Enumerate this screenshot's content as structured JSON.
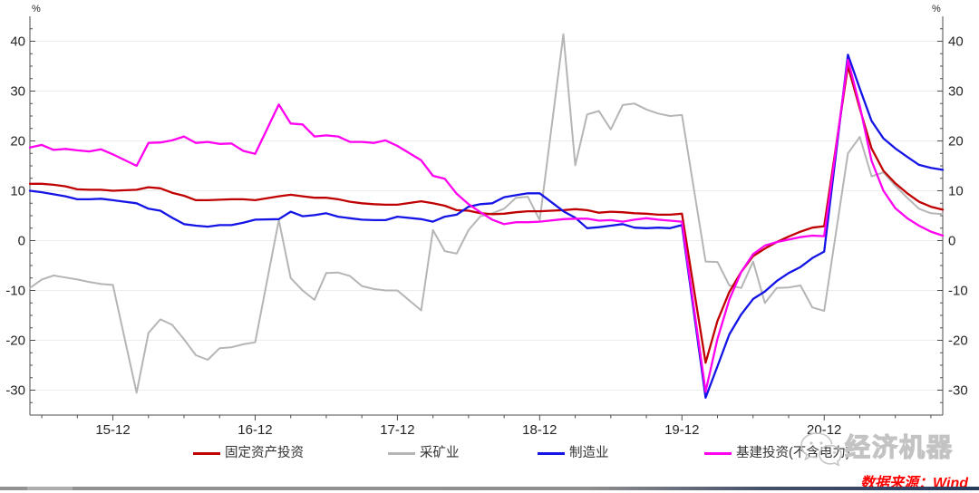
{
  "chart_data": {
    "type": "line",
    "title": "",
    "y_unit": "%",
    "ylim": [
      -35,
      45
    ],
    "y_major_ticks": [
      -30,
      -20,
      -10,
      0,
      10,
      20,
      30,
      40
    ],
    "y_minor_step": 2.5,
    "grid": true,
    "legend_position": "bottom",
    "x": [
      "2015-05",
      "2015-06",
      "2015-07",
      "2015-08",
      "2015-09",
      "2015-10",
      "2015-11",
      "2015-12",
      "2016-01",
      "2016-02",
      "2016-03",
      "2016-04",
      "2016-05",
      "2016-06",
      "2016-07",
      "2016-08",
      "2016-09",
      "2016-10",
      "2016-11",
      "2016-12",
      "2017-01",
      "2017-02",
      "2017-03",
      "2017-04",
      "2017-05",
      "2017-06",
      "2017-07",
      "2017-08",
      "2017-09",
      "2017-10",
      "2017-11",
      "2017-12",
      "2018-01",
      "2018-02",
      "2018-03",
      "2018-04",
      "2018-05",
      "2018-06",
      "2018-07",
      "2018-08",
      "2018-09",
      "2018-10",
      "2018-11",
      "2018-12",
      "2019-01",
      "2019-02",
      "2019-03",
      "2019-04",
      "2019-05",
      "2019-06",
      "2019-07",
      "2019-08",
      "2019-09",
      "2019-10",
      "2019-11",
      "2019-12",
      "2020-01",
      "2020-02",
      "2020-03",
      "2020-04",
      "2020-05",
      "2020-06",
      "2020-07",
      "2020-08",
      "2020-09",
      "2020-10",
      "2020-11",
      "2020-12",
      "2021-01",
      "2021-02",
      "2021-03",
      "2021-04",
      "2021-05",
      "2021-06",
      "2021-07",
      "2021-08",
      "2021-09",
      "2021-10"
    ],
    "x_major_tick_labels": [
      "15-12",
      "16-12",
      "17-12",
      "18-12",
      "19-12",
      "20-12"
    ],
    "x_major_tick_indices": [
      7,
      19,
      31,
      43,
      55,
      67
    ],
    "x_minor_every_months": 3,
    "series": [
      {
        "key": "mining",
        "name": "采矿业",
        "color": "#b5b5b5",
        "width": 2,
        "values": [
          -9.5,
          -7.8,
          -7.0,
          -7.4,
          -7.8,
          -8.3,
          -8.7,
          -8.9,
          null,
          -30.5,
          -18.5,
          -15.8,
          -16.9,
          -19.8,
          -23.0,
          -23.9,
          -21.6,
          -21.4,
          -20.8,
          -20.4,
          null,
          4.1,
          -7.5,
          -10.0,
          -11.9,
          -6.5,
          -6.4,
          -7.1,
          -9.1,
          -9.7,
          -10.0,
          -10.0,
          null,
          -14.0,
          2.1,
          -2.1,
          -2.6,
          2.1,
          4.9,
          5.5,
          6.4,
          8.6,
          8.8,
          4.1,
          null,
          41.4,
          15.1,
          25.3,
          26.0,
          22.3,
          27.2,
          27.5,
          26.3,
          25.5,
          25.0,
          25.2,
          null,
          -4.2,
          -4.3,
          -9.0,
          -9.5,
          -4.2,
          -12.5,
          -9.5,
          -9.4,
          -9.0,
          -13.4,
          -14.1,
          null,
          17.5,
          20.8,
          12.9,
          13.7,
          11.0,
          8.6,
          6.4,
          5.5,
          5.3
        ]
      },
      {
        "key": "fai",
        "name": "固定资产投资",
        "color": "#c00000",
        "width": 2.3,
        "values": [
          11.4,
          11.4,
          11.2,
          10.9,
          10.3,
          10.2,
          10.2,
          10.0,
          null,
          10.2,
          10.7,
          10.5,
          9.6,
          9.0,
          8.1,
          8.1,
          8.2,
          8.3,
          8.3,
          8.1,
          null,
          8.9,
          9.2,
          8.9,
          8.6,
          8.6,
          8.3,
          7.8,
          7.5,
          7.3,
          7.2,
          7.2,
          null,
          7.9,
          7.5,
          7.0,
          6.1,
          6.0,
          5.5,
          5.3,
          5.4,
          5.7,
          5.9,
          5.9,
          null,
          6.1,
          6.3,
          6.1,
          5.6,
          5.8,
          5.7,
          5.5,
          5.4,
          5.2,
          5.2,
          5.4,
          null,
          -24.5,
          -16.1,
          -10.3,
          -6.3,
          -3.1,
          -1.6,
          -0.3,
          0.8,
          1.8,
          2.6,
          2.9,
          null,
          35.0,
          26.5,
          18.5,
          14.0,
          11.5,
          9.5,
          7.8,
          6.8,
          6.2
        ]
      },
      {
        "key": "manufacturing",
        "name": "制造业",
        "color": "#1414e6",
        "width": 2.3,
        "values": [
          10.0,
          9.7,
          9.3,
          8.9,
          8.3,
          8.3,
          8.4,
          8.1,
          null,
          7.5,
          6.4,
          6.0,
          4.6,
          3.3,
          3.0,
          2.8,
          3.1,
          3.1,
          3.6,
          4.2,
          null,
          4.3,
          5.8,
          4.9,
          5.1,
          5.5,
          4.8,
          4.5,
          4.2,
          4.1,
          4.1,
          4.8,
          null,
          4.3,
          3.8,
          4.8,
          5.2,
          6.8,
          7.3,
          7.5,
          8.7,
          9.1,
          9.5,
          9.5,
          null,
          5.9,
          4.6,
          2.5,
          2.7,
          3.0,
          3.3,
          2.6,
          2.5,
          2.6,
          2.5,
          3.1,
          null,
          -31.5,
          -25.2,
          -18.8,
          -14.8,
          -11.7,
          -10.2,
          -8.1,
          -6.5,
          -5.3,
          -3.5,
          -2.2,
          null,
          37.3,
          30.5,
          24.0,
          20.5,
          18.5,
          16.8,
          15.2,
          14.6,
          14.2
        ]
      },
      {
        "key": "infra",
        "name": "基建投资(不含电力)",
        "color": "#ff00f0",
        "width": 2.3,
        "values": [
          18.7,
          19.2,
          18.2,
          18.4,
          18.1,
          17.9,
          18.3,
          17.3,
          null,
          15.0,
          19.6,
          19.7,
          20.1,
          20.9,
          19.6,
          19.8,
          19.4,
          19.5,
          18.0,
          17.4,
          null,
          27.3,
          23.5,
          23.3,
          20.9,
          21.1,
          20.9,
          19.8,
          19.8,
          19.6,
          20.1,
          19.0,
          null,
          16.1,
          13.0,
          12.4,
          9.4,
          7.3,
          5.7,
          4.2,
          3.3,
          3.7,
          3.7,
          3.8,
          null,
          4.3,
          4.4,
          4.4,
          4.0,
          4.1,
          3.8,
          4.2,
          4.5,
          4.2,
          4.0,
          3.8,
          null,
          -30.3,
          -19.7,
          -11.8,
          -6.3,
          -2.7,
          -1.0,
          -0.3,
          0.2,
          0.7,
          1.0,
          0.9,
          null,
          36.3,
          27.0,
          16.0,
          10.0,
          6.5,
          4.5,
          3.0,
          1.8,
          1.0
        ]
      }
    ]
  },
  "legend": {
    "items": [
      {
        "label": "固定资产投资",
        "color": "#c00000"
      },
      {
        "label": "采矿业",
        "color": "#b5b5b5"
      },
      {
        "label": "制造业",
        "color": "#1414e6"
      },
      {
        "label": "基建投资(不含电力)",
        "color": "#ff00f0"
      }
    ]
  },
  "axes": {
    "left_unit": "%",
    "right_unit": "%"
  },
  "watermark": {
    "brand": "经济机器",
    "icon": "wechat-icon"
  },
  "source": {
    "text": "数据来源：Wind"
  },
  "colors": {
    "axis": "#4d4d4d",
    "grid": "#ececec",
    "tick_label": "#262626",
    "source_text": "#ff0000",
    "watermark_gray": "#c3c3c3"
  }
}
